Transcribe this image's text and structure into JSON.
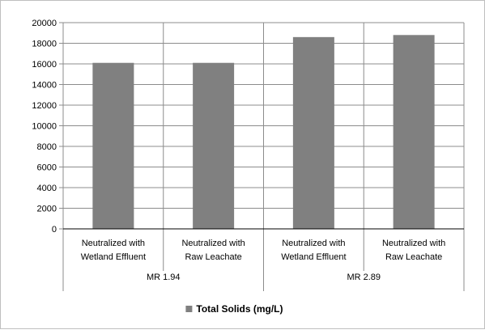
{
  "chart_data": {
    "type": "bar",
    "title": "",
    "xlabel": "",
    "ylabel": "",
    "ylim": [
      0,
      20000
    ],
    "y_ticks": [
      0,
      2000,
      4000,
      6000,
      8000,
      10000,
      12000,
      14000,
      16000,
      18000,
      20000
    ],
    "grid": true,
    "legend_position": "bottom",
    "groups": [
      {
        "label": "MR 1.94",
        "categories": [
          [
            "Neutralized with",
            "Wetland Effluent"
          ],
          [
            "Neutralized with",
            "Raw Leachate"
          ]
        ]
      },
      {
        "label": "MR 2.89",
        "categories": [
          [
            "Neutralized with",
            "Wetland Effluent"
          ],
          [
            "Neutralized with",
            "Raw Leachate"
          ]
        ]
      }
    ],
    "series": [
      {
        "name": "Total Solids (mg/L)",
        "color": "#808080",
        "values": [
          16100,
          16100,
          18600,
          18800
        ]
      }
    ]
  }
}
